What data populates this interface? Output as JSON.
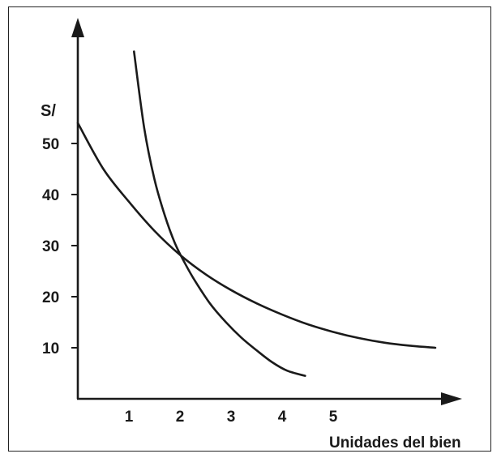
{
  "chart_data": {
    "type": "line",
    "title": "",
    "ylabel": "S/",
    "xlabel": "Unidades del bien",
    "xlim": [
      0,
      7.5
    ],
    "ylim": [
      0,
      60
    ],
    "x_ticks": [
      1,
      2,
      3,
      4,
      5
    ],
    "y_ticks": [
      10,
      20,
      30,
      40,
      50
    ],
    "grid": false,
    "colors": {
      "curve": "#1a1a1a",
      "axis": "#1a1a1a"
    },
    "series": [
      {
        "x": [
          0,
          0.5,
          1,
          1.5,
          2,
          2.5,
          3,
          3.5,
          4,
          4.5,
          5,
          5.5,
          6,
          6.5,
          7.0
        ],
        "y": [
          54,
          45,
          38.6,
          32.9,
          28.2,
          24.4,
          21.3,
          18.7,
          16.5,
          14.6,
          13.1,
          11.9,
          11.0,
          10.4,
          10
        ]
      },
      {
        "x": [
          1.1,
          1.3,
          1.5,
          1.7,
          1.9,
          2.1,
          2.3,
          2.6,
          2.9,
          3.2,
          3.5,
          3.8,
          4.1,
          4.45
        ],
        "y": [
          68,
          53,
          43,
          36,
          30.5,
          26.5,
          23,
          18.5,
          15,
          12,
          9.5,
          7.2,
          5.5,
          4.5
        ]
      }
    ]
  }
}
